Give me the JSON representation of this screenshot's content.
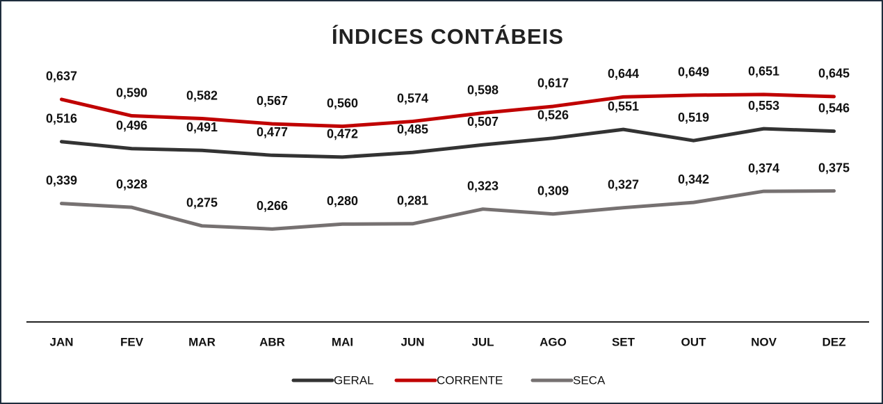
{
  "chart_data": {
    "type": "line",
    "title": "ÍNDICES CONTÁBEIS",
    "categories": [
      "JAN",
      "FEV",
      "MAR",
      "ABR",
      "MAI",
      "JUN",
      "JUL",
      "AGO",
      "SET",
      "OUT",
      "NOV",
      "DEZ"
    ],
    "series": [
      {
        "name": "GERAL",
        "color": "#333333",
        "values": [
          0.516,
          0.496,
          0.491,
          0.477,
          0.472,
          0.485,
          0.507,
          0.526,
          0.551,
          0.519,
          0.553,
          0.546
        ],
        "value_labels": [
          "0,516",
          "0,496",
          "0,491",
          "0,477",
          "0,472",
          "0,485",
          "0,507",
          "0,526",
          "0,551",
          "0,519",
          "0,553",
          "0,546"
        ]
      },
      {
        "name": "CORRENTE",
        "color": "#c00000",
        "values": [
          0.637,
          0.59,
          0.582,
          0.567,
          0.56,
          0.574,
          0.598,
          0.617,
          0.644,
          0.649,
          0.651,
          0.645
        ],
        "value_labels": [
          "0,637",
          "0,590",
          "0,582",
          "0,567",
          "0,560",
          "0,574",
          "0,598",
          "0,617",
          "0,644",
          "0,649",
          "0,651",
          "0,645"
        ]
      },
      {
        "name": "SECA",
        "color": "#767171",
        "values": [
          0.339,
          0.328,
          0.275,
          0.266,
          0.28,
          0.281,
          0.323,
          0.309,
          0.327,
          0.342,
          0.374,
          0.375
        ],
        "value_labels": [
          "0,339",
          "0,328",
          "0,275",
          "0,266",
          "0,280",
          "0,281",
          "0,323",
          "0,309",
          "0,327",
          "0,342",
          "0,374",
          "0,375"
        ]
      }
    ],
    "ylim": [
      0,
      0.8
    ]
  }
}
